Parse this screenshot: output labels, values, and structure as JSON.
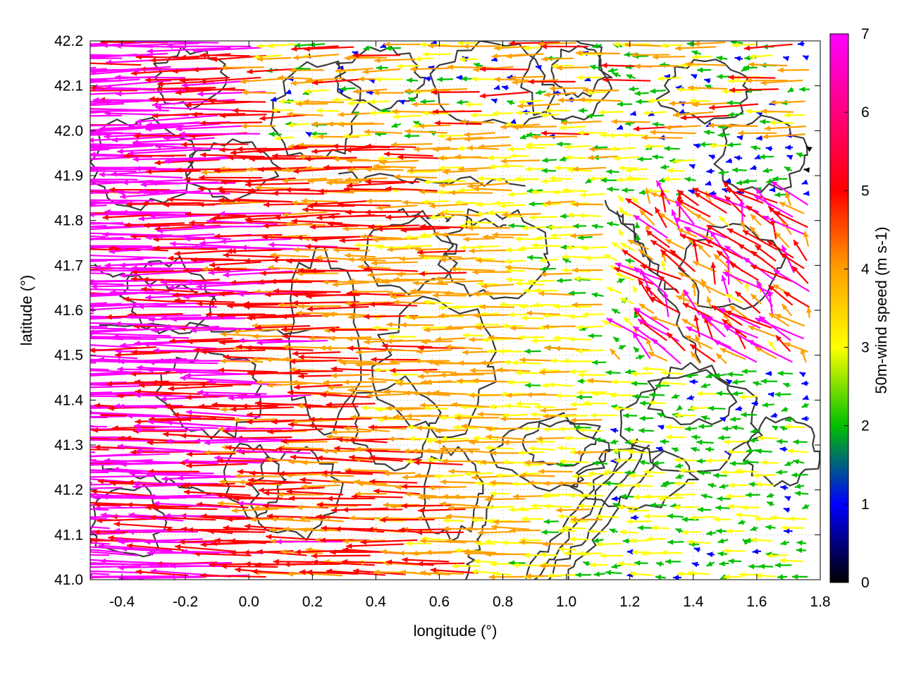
{
  "chart_data": {
    "type": "vector-field",
    "xlabel": "longitude (°)",
    "ylabel": "latitude (°)",
    "colorbar_label": "50m-wind speed (m s-1)",
    "xlim": [
      -0.5,
      1.8
    ],
    "ylim": [
      41.0,
      42.2
    ],
    "xticks": [
      "-0.4",
      "-0.2",
      "0.0",
      "0.2",
      "0.4",
      "0.6",
      "0.8",
      "1.0",
      "1.2",
      "1.4",
      "1.6",
      "1.8"
    ],
    "yticks": [
      "41.0",
      "41.1",
      "41.2",
      "41.3",
      "41.4",
      "41.5",
      "41.6",
      "41.7",
      "41.8",
      "41.9",
      "42.0",
      "42.1",
      "42.2"
    ],
    "colorbar": {
      "range": [
        0,
        7
      ],
      "ticks": [
        "0",
        "1",
        "2",
        "3",
        "4",
        "5",
        "6",
        "7"
      ],
      "palette": [
        "#000000",
        "#0000ff",
        "#00c000",
        "#ffff00",
        "#ffa000",
        "#ff0000",
        "#ff00ff"
      ]
    },
    "grid": true,
    "notes_visible": "Wind arrows mostly from the east (pointing west) with highest speeds (magenta, ~7 m/s) in the western half; weaker mixed-direction winds (blue/green/yellow) in the eastern part; dark grey terrain contours overlaid."
  },
  "colors": {
    "contour": "#3a3a3a",
    "frame": "#000000"
  }
}
